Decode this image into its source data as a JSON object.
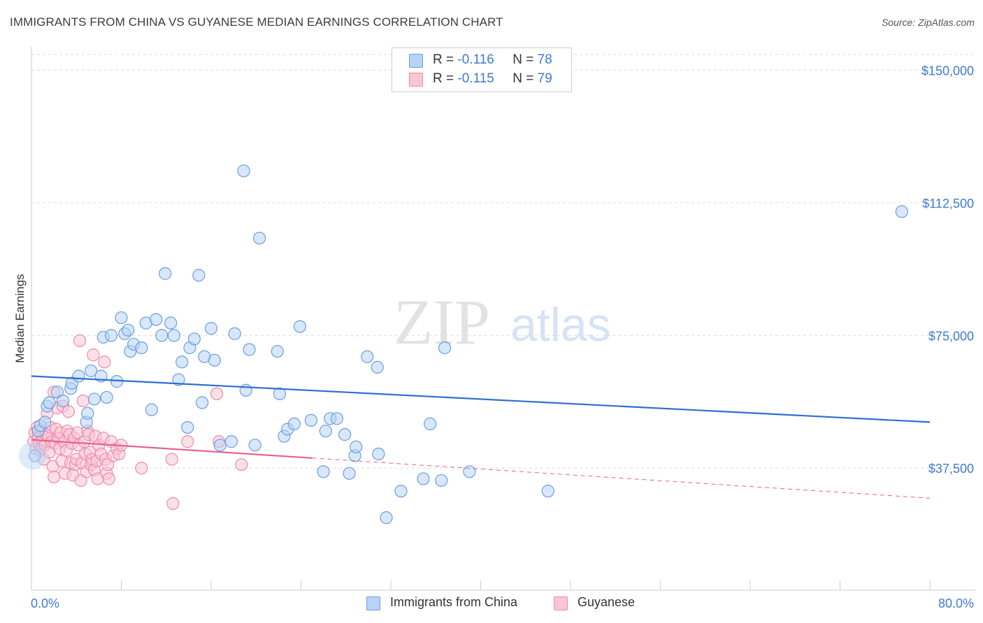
{
  "title": "IMMIGRANTS FROM CHINA VS GUYANESE MEDIAN EARNINGS CORRELATION CHART",
  "source": "Source: ZipAtlas.com",
  "watermark": {
    "zip": "ZIP",
    "atlas": "atlas"
  },
  "legend": {
    "r_label": "R =",
    "n_label": "N =",
    "rows": [
      {
        "r": "-0.116",
        "n": "78"
      },
      {
        "r": "-0.115",
        "n": "79"
      }
    ]
  },
  "colors": {
    "china_fill": "#b8d3f4",
    "china_stroke": "#6a9fe0",
    "china_line": "#2f6fcf",
    "guyanese_fill": "#f9c6d5",
    "guyanese_stroke": "#ee8aa8",
    "guyanese_line": "#e8608c",
    "axis_value": "#3f7ad3",
    "grid": "#dddddd"
  },
  "chart_data": {
    "type": "scatter",
    "title": "IMMIGRANTS FROM CHINA VS GUYANESE MEDIAN EARNINGS CORRELATION CHART",
    "ylabel": "Median Earnings",
    "xlabel": "",
    "xlim": [
      0,
      80
    ],
    "ylim": [
      3000,
      155000
    ],
    "x_tick_labels": [
      "0.0%",
      "80.0%"
    ],
    "y_ticks": [
      37500,
      75000,
      112500,
      150000
    ],
    "y_tick_labels": [
      "$37,500",
      "$75,000",
      "$112,500",
      "$150,000"
    ],
    "grid": true,
    "legend_position": "top-center",
    "series": [
      {
        "name": "Immigrants from China",
        "r": -0.116,
        "n": 78,
        "trend": {
          "x": [
            0,
            80
          ],
          "y": [
            63500,
            50500
          ],
          "dashed_from": null
        },
        "points": [
          [
            0.3,
            41000
          ],
          [
            0.6,
            48000
          ],
          [
            0.8,
            49500
          ],
          [
            1.2,
            50500
          ],
          [
            1.4,
            55000
          ],
          [
            1.6,
            56000
          ],
          [
            2.3,
            59000
          ],
          [
            2.8,
            56500
          ],
          [
            3.5,
            60000
          ],
          [
            3.6,
            61500
          ],
          [
            4.2,
            63500
          ],
          [
            4.9,
            50500
          ],
          [
            5.0,
            53000
          ],
          [
            5.3,
            65000
          ],
          [
            5.6,
            57000
          ],
          [
            6.2,
            63500
          ],
          [
            6.4,
            74500
          ],
          [
            6.7,
            57500
          ],
          [
            7.1,
            75000
          ],
          [
            7.6,
            62000
          ],
          [
            8.0,
            80000
          ],
          [
            8.3,
            75500
          ],
          [
            8.6,
            76500
          ],
          [
            8.8,
            70500
          ],
          [
            9.1,
            72500
          ],
          [
            9.8,
            71500
          ],
          [
            10.2,
            78500
          ],
          [
            10.7,
            54000
          ],
          [
            11.1,
            79500
          ],
          [
            11.6,
            75000
          ],
          [
            11.9,
            92500
          ],
          [
            12.4,
            78500
          ],
          [
            12.7,
            75000
          ],
          [
            13.1,
            62500
          ],
          [
            13.4,
            67500
          ],
          [
            13.9,
            49000
          ],
          [
            14.1,
            71500
          ],
          [
            14.5,
            74000
          ],
          [
            14.9,
            92000
          ],
          [
            15.2,
            56000
          ],
          [
            15.4,
            69000
          ],
          [
            16.0,
            77000
          ],
          [
            16.3,
            68000
          ],
          [
            16.8,
            44000
          ],
          [
            17.8,
            45000
          ],
          [
            18.1,
            75500
          ],
          [
            18.9,
            121500
          ],
          [
            19.1,
            59500
          ],
          [
            19.4,
            71000
          ],
          [
            19.9,
            44000
          ],
          [
            20.3,
            102500
          ],
          [
            21.9,
            70500
          ],
          [
            22.1,
            58500
          ],
          [
            22.5,
            46500
          ],
          [
            22.8,
            48500
          ],
          [
            23.4,
            50000
          ],
          [
            23.9,
            77500
          ],
          [
            24.9,
            51000
          ],
          [
            26.0,
            36500
          ],
          [
            26.2,
            48000
          ],
          [
            26.6,
            51500
          ],
          [
            27.2,
            51500
          ],
          [
            27.9,
            47000
          ],
          [
            28.3,
            36000
          ],
          [
            28.8,
            41000
          ],
          [
            28.9,
            43500
          ],
          [
            29.9,
            69000
          ],
          [
            30.8,
            66000
          ],
          [
            30.9,
            41500
          ],
          [
            31.6,
            23500
          ],
          [
            32.9,
            31000
          ],
          [
            34.9,
            34500
          ],
          [
            35.5,
            50000
          ],
          [
            36.5,
            34000
          ],
          [
            36.8,
            71500
          ],
          [
            39.0,
            36500
          ],
          [
            46.0,
            31000
          ],
          [
            77.5,
            110000
          ]
        ]
      },
      {
        "name": "Guyanese",
        "r": -0.115,
        "n": 79,
        "trend": {
          "x": [
            0,
            80
          ],
          "y": [
            45500,
            29000
          ],
          "dashed_from": 25
        },
        "points": [
          [
            0.2,
            45000
          ],
          [
            0.3,
            47500
          ],
          [
            0.4,
            43000
          ],
          [
            0.5,
            49000
          ],
          [
            0.6,
            46000
          ],
          [
            0.7,
            44500
          ],
          [
            0.8,
            42500
          ],
          [
            0.9,
            48000
          ],
          [
            1.0,
            45500
          ],
          [
            1.1,
            40000
          ],
          [
            1.2,
            44000
          ],
          [
            1.3,
            47000
          ],
          [
            1.4,
            53000
          ],
          [
            1.5,
            46500
          ],
          [
            1.6,
            42000
          ],
          [
            1.7,
            49000
          ],
          [
            1.8,
            45000
          ],
          [
            1.9,
            38000
          ],
          [
            2.0,
            59000
          ],
          [
            2.0,
            35000
          ],
          [
            2.1,
            44500
          ],
          [
            2.2,
            48500
          ],
          [
            2.3,
            54500
          ],
          [
            2.4,
            46000
          ],
          [
            2.5,
            43000
          ],
          [
            2.6,
            47500
          ],
          [
            2.7,
            39500
          ],
          [
            2.8,
            55000
          ],
          [
            2.9,
            45000
          ],
          [
            3.0,
            36000
          ],
          [
            3.1,
            42500
          ],
          [
            3.2,
            48000
          ],
          [
            3.3,
            53500
          ],
          [
            3.4,
            47000
          ],
          [
            3.5,
            39000
          ],
          [
            3.6,
            44500
          ],
          [
            3.7,
            35500
          ],
          [
            3.8,
            46000
          ],
          [
            3.9,
            38500
          ],
          [
            4.0,
            40000
          ],
          [
            4.1,
            47500
          ],
          [
            4.2,
            44000
          ],
          [
            4.3,
            73500
          ],
          [
            4.4,
            34000
          ],
          [
            4.5,
            39000
          ],
          [
            4.6,
            56500
          ],
          [
            4.7,
            45000
          ],
          [
            4.8,
            41500
          ],
          [
            4.9,
            36500
          ],
          [
            5.0,
            48000
          ],
          [
            5.1,
            47000
          ],
          [
            5.2,
            42000
          ],
          [
            5.3,
            38500
          ],
          [
            5.4,
            40000
          ],
          [
            5.5,
            69500
          ],
          [
            5.6,
            37000
          ],
          [
            5.7,
            46500
          ],
          [
            5.8,
            39500
          ],
          [
            5.9,
            34500
          ],
          [
            6.0,
            44000
          ],
          [
            6.2,
            41500
          ],
          [
            6.4,
            46000
          ],
          [
            6.5,
            67500
          ],
          [
            6.6,
            40000
          ],
          [
            6.7,
            36000
          ],
          [
            6.8,
            38500
          ],
          [
            6.9,
            34500
          ],
          [
            7.1,
            45000
          ],
          [
            7.3,
            41000
          ],
          [
            7.6,
            43000
          ],
          [
            7.8,
            41500
          ],
          [
            8.0,
            44000
          ],
          [
            9.8,
            37500
          ],
          [
            12.5,
            40000
          ],
          [
            12.6,
            27500
          ],
          [
            13.9,
            45000
          ],
          [
            16.5,
            58500
          ],
          [
            16.7,
            45000
          ],
          [
            18.7,
            38500
          ]
        ]
      }
    ]
  },
  "bottom_legend": [
    {
      "label": "Immigrants from China"
    },
    {
      "label": "Guyanese"
    }
  ]
}
